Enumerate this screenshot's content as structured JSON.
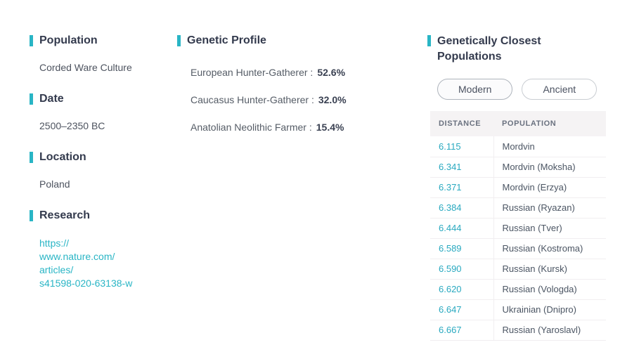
{
  "accent": "#29b5c5",
  "details": {
    "population": {
      "label": "Population",
      "value": "Corded Ware Culture"
    },
    "date": {
      "label": "Date",
      "value": "2500–2350 BC"
    },
    "location": {
      "label": "Location",
      "value": "Poland"
    },
    "research": {
      "label": "Research",
      "url": "https://www.nature.com/articles/s41598-020-63138-w",
      "link_lines": [
        "https://",
        "www.nature.com/",
        "articles/",
        "s41598-020-63138-w"
      ]
    }
  },
  "genetic_profile": {
    "title": "Genetic Profile",
    "components": [
      {
        "label": "European Hunter-Gatherer :",
        "value": "52.6%"
      },
      {
        "label": "Caucasus Hunter-Gatherer :",
        "value": "32.0%"
      },
      {
        "label": "Anatolian Neolithic Farmer :",
        "value": "15.4%"
      }
    ]
  },
  "closest_populations": {
    "title": "Genetically Closest Populations",
    "tabs": [
      {
        "label": "Modern",
        "selected": true
      },
      {
        "label": "Ancient",
        "selected": false
      }
    ],
    "table": {
      "headers": [
        "DISTANCE",
        "POPULATION"
      ],
      "rows": [
        {
          "distance": "6.115",
          "population": "Mordvin"
        },
        {
          "distance": "6.341",
          "population": "Mordvin (Moksha)"
        },
        {
          "distance": "6.371",
          "population": "Mordvin (Erzya)"
        },
        {
          "distance": "6.384",
          "population": "Russian (Ryazan)"
        },
        {
          "distance": "6.444",
          "population": "Russian (Tver)"
        },
        {
          "distance": "6.589",
          "population": "Russian (Kostroma)"
        },
        {
          "distance": "6.590",
          "population": "Russian (Kursk)"
        },
        {
          "distance": "6.620",
          "population": "Russian (Vologda)"
        },
        {
          "distance": "6.647",
          "population": "Ukrainian (Dnipro)"
        },
        {
          "distance": "6.667",
          "population": "Russian (Yaroslavl)"
        }
      ]
    }
  }
}
